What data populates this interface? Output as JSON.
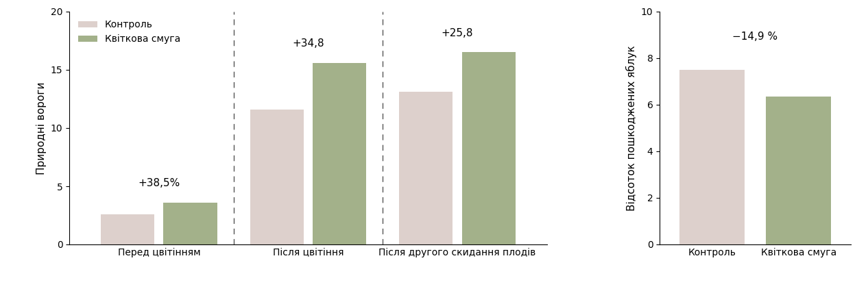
{
  "chart_data": [
    {
      "type": "bar",
      "ylabel": "Природні вороги",
      "categories": [
        "Перед цвітінням",
        "Після цвітіння",
        "Після другого скидання плодів"
      ],
      "series": [
        {
          "name": "Контроль",
          "color": "#ddd0cc",
          "values": [
            2.6,
            11.6,
            13.1
          ]
        },
        {
          "name": "Квіткова смуга",
          "color": "#a3b18a",
          "values": [
            3.6,
            15.6,
            16.5
          ]
        }
      ],
      "annotations": [
        "+38,5%",
        "+34,8",
        "+25,8"
      ],
      "ylim": [
        0,
        20
      ],
      "yticks": [
        0,
        5,
        10,
        15,
        20
      ],
      "legend": "upper left"
    },
    {
      "type": "bar",
      "ylabel": "Відсоток пошкоджених яблук",
      "categories": [
        "Контроль",
        "Квіткова смуга"
      ],
      "values": [
        7.5,
        6.35
      ],
      "colors": [
        "#ddd0cc",
        "#a3b18a"
      ],
      "annotations": [
        "−14,9 %"
      ],
      "ylim": [
        0,
        10
      ],
      "yticks": [
        0,
        2,
        4,
        6,
        8,
        10
      ]
    }
  ]
}
